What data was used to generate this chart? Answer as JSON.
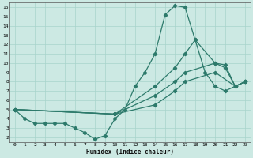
{
  "xlabel": "Humidex (Indice chaleur)",
  "xlim": [
    -0.5,
    23.5
  ],
  "ylim": [
    1.5,
    16.5
  ],
  "xticks": [
    0,
    1,
    2,
    3,
    4,
    5,
    6,
    7,
    8,
    9,
    10,
    11,
    12,
    13,
    14,
    15,
    16,
    17,
    18,
    19,
    20,
    21,
    22,
    23
  ],
  "yticks": [
    2,
    3,
    4,
    5,
    6,
    7,
    8,
    9,
    10,
    11,
    12,
    13,
    14,
    15,
    16
  ],
  "line_color": "#2d7a6b",
  "bg_color": "#cce9e3",
  "grid_color": "#a8d4cc",
  "curve1_x": [
    0,
    1,
    2,
    3,
    4,
    5,
    6,
    7,
    8,
    9,
    10,
    11,
    12,
    13,
    14,
    15,
    16,
    17,
    18,
    19,
    20,
    21,
    22,
    23
  ],
  "curve1_y": [
    5.0,
    4.0,
    3.5,
    3.5,
    3.5,
    3.5,
    3.0,
    2.5,
    1.8,
    2.2,
    4.0,
    5.0,
    7.5,
    9.0,
    11.0,
    15.2,
    16.2,
    16.0,
    12.5,
    9.0,
    7.5,
    7.0,
    7.5,
    8.0
  ],
  "curve2_x": [
    0,
    10,
    14,
    16,
    17,
    18,
    20,
    21,
    22,
    23
  ],
  "curve2_y": [
    5.0,
    4.5,
    7.5,
    9.5,
    11.0,
    12.5,
    10.0,
    9.5,
    7.5,
    8.0
  ],
  "curve3_x": [
    0,
    10,
    14,
    16,
    17,
    20,
    21,
    22,
    23
  ],
  "curve3_y": [
    5.0,
    4.5,
    6.5,
    8.0,
    9.0,
    10.0,
    9.8,
    7.5,
    8.0
  ],
  "curve4_x": [
    0,
    10,
    14,
    16,
    17,
    20,
    22,
    23
  ],
  "curve4_y": [
    5.0,
    4.5,
    5.5,
    7.0,
    8.0,
    9.0,
    7.5,
    8.0
  ],
  "marker": "D",
  "markersize": 2.2,
  "linewidth": 0.9
}
